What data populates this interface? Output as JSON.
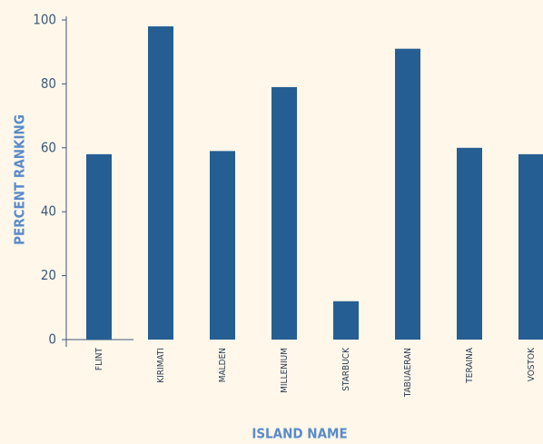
{
  "chart_data": {
    "type": "bar",
    "x_label": "ISLAND NAME",
    "y_label": "PERCENT RANKING",
    "categories": [
      "FLINT",
      "KIRIMATI",
      "MALDEN",
      "MILLENIUM",
      "STARBUCK",
      "TABUAERAN",
      "TERAINA",
      "VOSTOK"
    ],
    "values": [
      58,
      98,
      59,
      79,
      12,
      91,
      60,
      58
    ],
    "color": "#255e92",
    "ylim": [
      0,
      100
    ],
    "yticks": [
      0,
      20,
      40,
      60,
      80,
      100
    ],
    "grid": false
  }
}
